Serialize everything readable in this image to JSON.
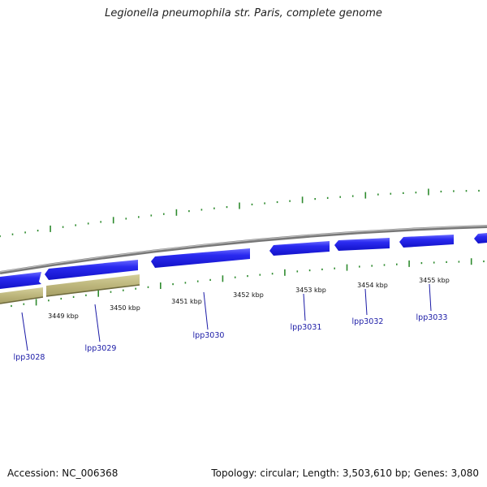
{
  "title": "Legionella pneumophila str. Paris, complete genome",
  "footer": {
    "accession": "Accession: NC_006368",
    "summary": "Topology: circular; Length: 3,503,610 bp; Genes: 3,080"
  },
  "colors": {
    "cds_forward": "#1a1ae6",
    "cds_highlight": "#6a6aff",
    "cds_reverse": "#b3ac73",
    "backbone": "#8a8a8a",
    "tick": "#2e8b2e",
    "gene_label": "#1a1aa6"
  },
  "scale": {
    "unit": "kbp",
    "labels": [
      "3449 kbp",
      "3450 kbp",
      "3451 kbp",
      "3452 kbp",
      "3453 kbp",
      "3454 kbp",
      "3455 kbp"
    ]
  },
  "genes": [
    {
      "name": "lpp3028"
    },
    {
      "name": "lpp3029"
    },
    {
      "name": "lpp3030"
    },
    {
      "name": "lpp3031"
    },
    {
      "name": "lpp3032"
    },
    {
      "name": "lpp3033"
    }
  ]
}
